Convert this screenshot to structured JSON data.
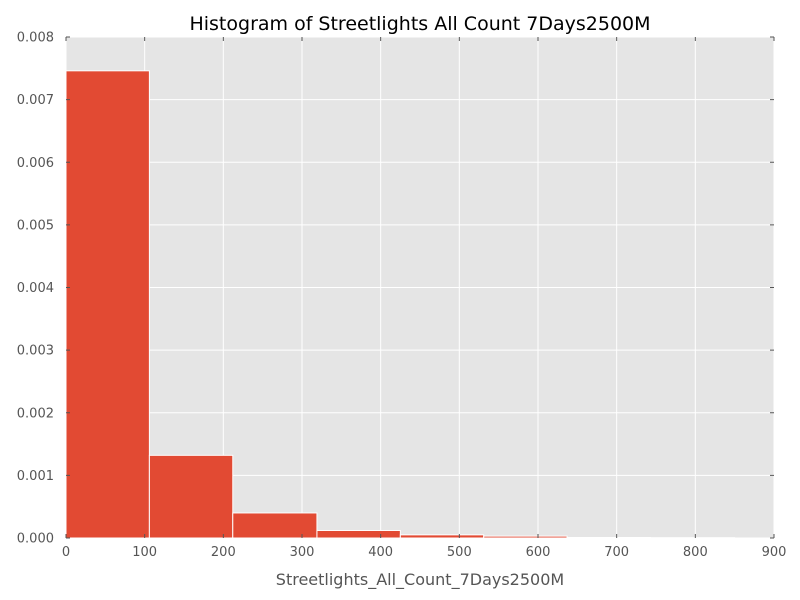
{
  "chart_data": {
    "type": "bar",
    "title": "Histogram of Streetlights All Count 7Days2500M",
    "xlabel": "Streetlights_All_Count_7Days2500M",
    "ylabel": "",
    "xlim": [
      0,
      900
    ],
    "ylim": [
      0,
      0.008
    ],
    "xticks": [
      "0",
      "100",
      "200",
      "300",
      "400",
      "500",
      "600",
      "700",
      "800",
      "900"
    ],
    "yticks": [
      "0.000",
      "0.001",
      "0.002",
      "0.003",
      "0.004",
      "0.005",
      "0.006",
      "0.007",
      "0.008"
    ],
    "grid": true,
    "bins": [
      {
        "x0": 0,
        "x1": 106,
        "density": 0.00746
      },
      {
        "x0": 106,
        "x1": 212,
        "density": 0.00132
      },
      {
        "x0": 212,
        "x1": 319,
        "density": 0.0004
      },
      {
        "x0": 319,
        "x1": 425,
        "density": 0.00012
      },
      {
        "x0": 425,
        "x1": 531,
        "density": 5e-05
      },
      {
        "x0": 531,
        "x1": 637,
        "density": 3e-05
      },
      {
        "x0": 637,
        "x1": 743,
        "density": 8e-06
      },
      {
        "x0": 743,
        "x1": 850,
        "density": 5e-06
      }
    ],
    "colors": {
      "bar": "#E24A33",
      "plot_background": "#E5E5E5",
      "grid": "#FFFFFF",
      "tick_label": "#555555"
    }
  }
}
